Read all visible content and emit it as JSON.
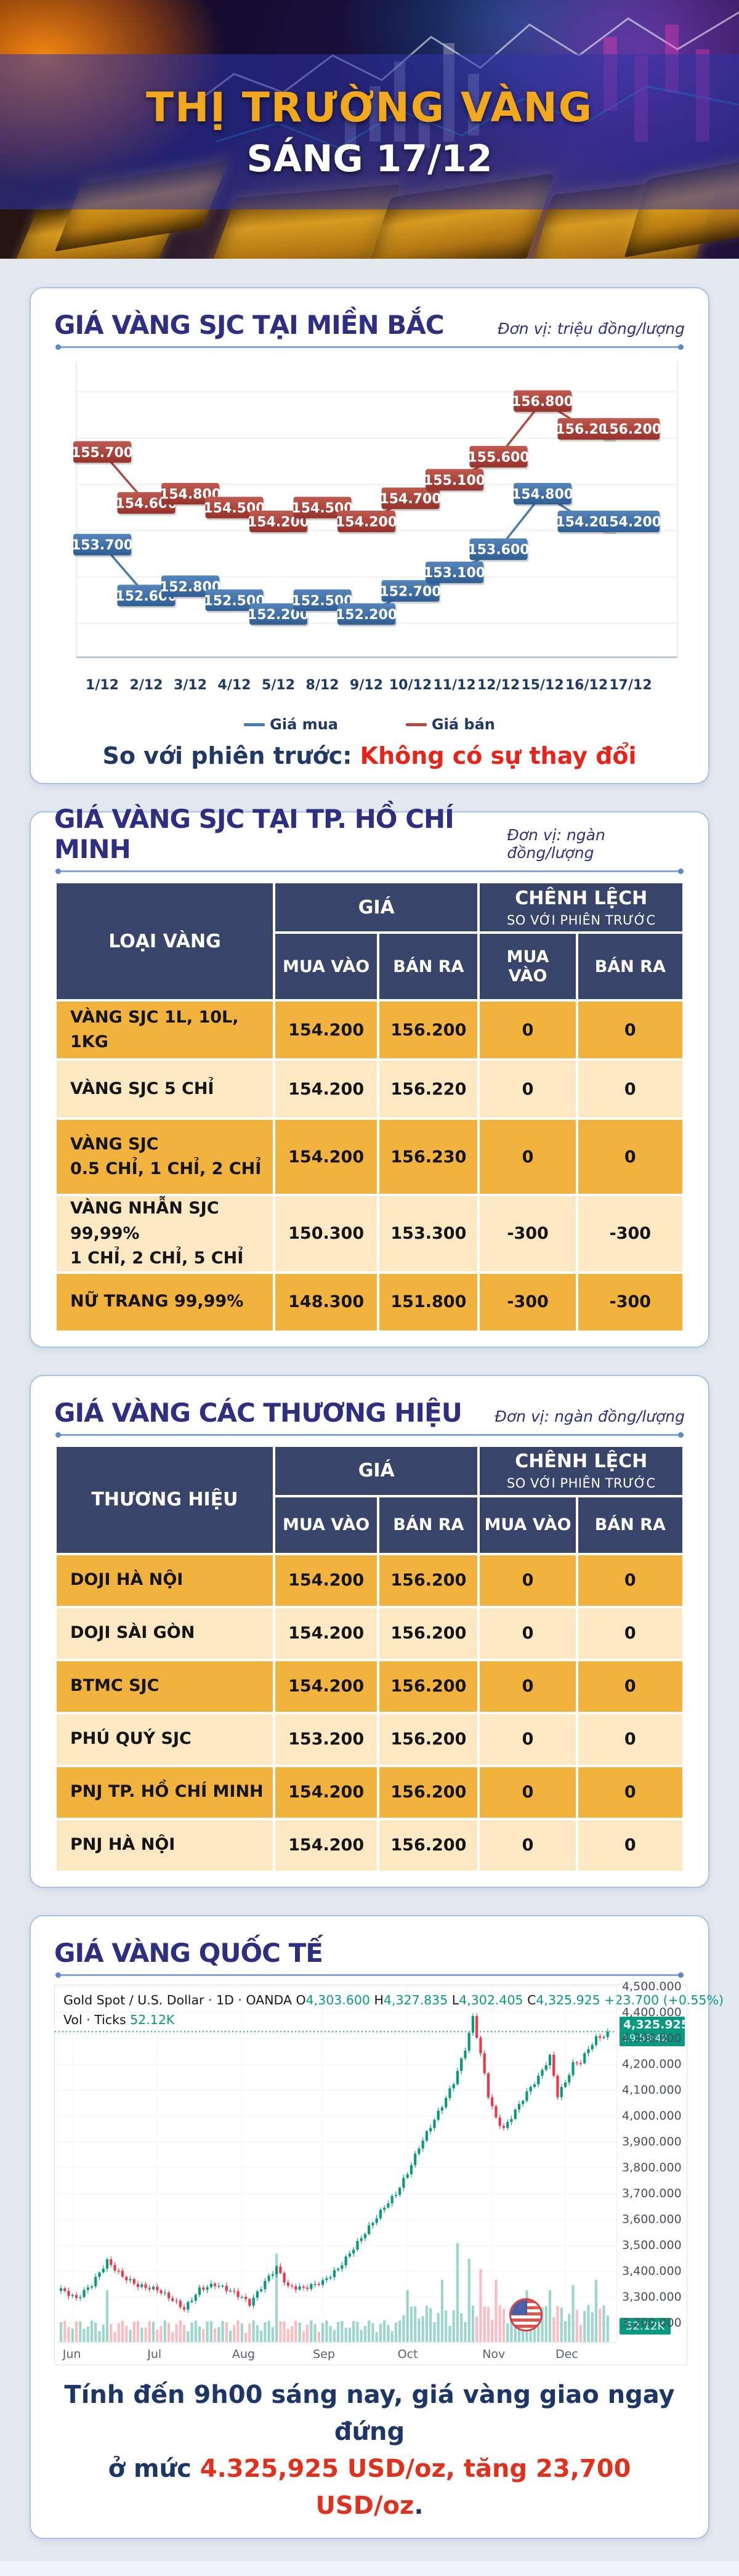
{
  "header": {
    "title": "THỊ TRƯỜNG VÀNG",
    "subtitle": "SÁNG 17/12"
  },
  "colors": {
    "navy": "#1f3864",
    "title_navy": "#2e2f80",
    "red_accent": "#e8231a",
    "buy_line": "#4a79ad",
    "sell_line": "#b04a42",
    "table_header": "#39446b",
    "row_dark": "#f2b23e",
    "row_light": "#fce9c4",
    "tv_up": "#089981",
    "tv_down": "#f23645"
  },
  "sjc_north": {
    "title": "GIÁ VÀNG SJC TẠI MIỀN BẮC",
    "unit": "Đơn vị: triệu đồng/lượng",
    "legend_buy": "Giá mua",
    "legend_sell": "Giá bán",
    "note_prefix": "So với phiên trước: ",
    "note_highlight": "Không có sự thay đổi"
  },
  "sjc_hcm": {
    "title": "GIÁ VÀNG SJC TẠI TP. HỒ CHÍ MINH",
    "unit": "Đơn vị: ngàn đồng/lượng",
    "table": {
      "col1_header": "LOẠI VÀNG",
      "gia_header": "GIÁ",
      "chenh_header": "CHÊNH LỆCH",
      "chenh_sub": "SO VỚI PHIÊN TRƯỚC",
      "sub_headers": [
        "MUA VÀO",
        "BÁN RA",
        "MUA\nVÀO",
        "BÁN RA"
      ],
      "rows": [
        {
          "label": "VÀNG SJC 1L, 10L, 1KG",
          "buy": "154.200",
          "sell": "156.200",
          "dbuy": "0",
          "dsell": "0",
          "tall": false
        },
        {
          "label": "VÀNG SJC 5 CHỈ",
          "buy": "154.200",
          "sell": "156.220",
          "dbuy": "0",
          "dsell": "0",
          "tall": false
        },
        {
          "label": "VÀNG SJC\n0.5 CHỈ, 1 CHỈ, 2 CHỈ",
          "buy": "154.200",
          "sell": "156.230",
          "dbuy": "0",
          "dsell": "0",
          "tall": true
        },
        {
          "label": "VÀNG NHẪN SJC 99,99%\n1 CHỈ, 2 CHỈ, 5 CHỈ",
          "buy": "150.300",
          "sell": "153.300",
          "dbuy": "-300",
          "dsell": "-300",
          "tall": true
        },
        {
          "label": "NỮ TRANG 99,99%",
          "buy": "148.300",
          "sell": "151.800",
          "dbuy": "-300",
          "dsell": "-300",
          "tall": false
        }
      ]
    }
  },
  "brands": {
    "title": "GIÁ VÀNG CÁC THƯƠNG HIỆU",
    "unit": "Đơn vị: ngàn đồng/lượng",
    "table": {
      "col1_header": "THƯƠNG HIỆU",
      "gia_header": "GIÁ",
      "chenh_header": "CHÊNH LỆCH",
      "chenh_sub": "SO VỚI PHIÊN TRƯỚC",
      "sub_headers": [
        "MUA VÀO",
        "BÁN RA",
        "MUA VÀO",
        "BÁN RA"
      ],
      "rows": [
        {
          "label": "DOJI HÀ NỘI",
          "buy": "154.200",
          "sell": "156.200",
          "dbuy": "0",
          "dsell": "0",
          "tall": false
        },
        {
          "label": "DOJI SÀI GÒN",
          "buy": "154.200",
          "sell": "156.200",
          "dbuy": "0",
          "dsell": "0",
          "tall": false
        },
        {
          "label": "BTMC SJC",
          "buy": "154.200",
          "sell": "156.200",
          "dbuy": "0",
          "dsell": "0",
          "tall": false
        },
        {
          "label": "PHÚ QUÝ SJC",
          "buy": "153.200",
          "sell": "156.200",
          "dbuy": "0",
          "dsell": "0",
          "tall": false
        },
        {
          "label": "PNJ TP. HỒ CHÍ MINH",
          "buy": "154.200",
          "sell": "156.200",
          "dbuy": "0",
          "dsell": "0",
          "tall": false
        },
        {
          "label": "PNJ HÀ NỘI",
          "buy": "154.200",
          "sell": "156.200",
          "dbuy": "0",
          "dsell": "0",
          "tall": false
        }
      ]
    }
  },
  "intl": {
    "title": "GIÁ VÀNG QUỐC TẾ",
    "legend": {
      "symbol": "Gold Spot / U.S. Dollar · 1D · OANDA",
      "ohlc": {
        "O": "4,303.600",
        "H": "4,327.835",
        "L": "4,302.405",
        "C": "4,325.925"
      },
      "change": "+23.700 (+0.55%)",
      "vol_label": "Vol · Ticks",
      "vol_value": "52.12K"
    },
    "price_badge": {
      "price": "4,325.925",
      "time": "19:58:42"
    },
    "vol_badge": "52.12K"
  },
  "footer": {
    "line1": "Tính đến 9h00 sáng nay, giá vàng giao ngay đứng",
    "line2_prefix": "ở mức ",
    "line2_red": "4.325,925 USD/oz, tăng 23,700 USD/oz",
    "line2_suffix": "."
  },
  "chart_data": [
    {
      "type": "line",
      "title": "GIÁ VÀNG SJC TẠI MIỀN BẮC",
      "ylabel": "triệu đồng/lượng",
      "categories": [
        "1/12",
        "2/12",
        "3/12",
        "4/12",
        "5/12",
        "8/12",
        "9/12",
        "10/12",
        "11/12",
        "12/12",
        "15/12",
        "16/12",
        "17/12"
      ],
      "series": [
        {
          "name": "Giá mua",
          "color": "#4a79ad",
          "values": [
            153.7,
            152.6,
            152.8,
            152.5,
            152.2,
            152.5,
            152.2,
            152.7,
            153.1,
            153.6,
            154.8,
            154.2,
            154.2
          ]
        },
        {
          "name": "Giá bán",
          "color": "#b04a42",
          "values": [
            155.7,
            154.6,
            154.8,
            154.5,
            154.2,
            154.5,
            154.2,
            154.7,
            155.1,
            155.6,
            156.8,
            156.2,
            156.2
          ]
        }
      ],
      "ylim": [
        151.4,
        157.6
      ],
      "grid": true,
      "legend_position": "bottom"
    },
    {
      "type": "candlestick",
      "title": "Gold Spot / U.S. Dollar, 1D, OANDA",
      "last_close": 4325.925,
      "open": 4303.6,
      "high": 4327.835,
      "low": 4302.405,
      "close": 4325.925,
      "change": "+23.700 (+0.55%)",
      "volume_ticks": "52.12K",
      "ylim": [
        3125,
        4505
      ],
      "y_ticks": [
        4500,
        4400,
        4300,
        4200,
        4100,
        4000,
        3900,
        3800,
        3700,
        3600,
        3500,
        3400,
        3300,
        3200
      ],
      "n_candles": 143,
      "close_anchors": [
        [
          0,
          3330
        ],
        [
          4,
          3295
        ],
        [
          8,
          3350
        ],
        [
          12,
          3440
        ],
        [
          16,
          3380
        ],
        [
          20,
          3345
        ],
        [
          25,
          3330
        ],
        [
          29,
          3290
        ],
        [
          32,
          3255
        ],
        [
          36,
          3330
        ],
        [
          40,
          3350
        ],
        [
          44,
          3325
        ],
        [
          47,
          3300
        ],
        [
          49,
          3275
        ],
        [
          53,
          3360
        ],
        [
          56,
          3415
        ],
        [
          59,
          3340
        ],
        [
          63,
          3335
        ],
        [
          66,
          3350
        ],
        [
          68,
          3360
        ],
        [
          72,
          3410
        ],
        [
          76,
          3490
        ],
        [
          80,
          3570
        ],
        [
          84,
          3650
        ],
        [
          87,
          3700
        ],
        [
          90,
          3780
        ],
        [
          93,
          3880
        ],
        [
          96,
          3960
        ],
        [
          99,
          4040
        ],
        [
          102,
          4130
        ],
        [
          105,
          4260
        ],
        [
          107,
          4380
        ],
        [
          109,
          4240
        ],
        [
          111,
          4080
        ],
        [
          113,
          3990
        ],
        [
          115,
          3950
        ],
        [
          118,
          4020
        ],
        [
          121,
          4090
        ],
        [
          124,
          4150
        ],
        [
          127,
          4230
        ],
        [
          129,
          4080
        ],
        [
          131,
          4130
        ],
        [
          133,
          4200
        ],
        [
          135,
          4210
        ],
        [
          137,
          4260
        ],
        [
          139,
          4300
        ],
        [
          141,
          4310
        ],
        [
          142,
          4325.925
        ]
      ],
      "wiggle": 8,
      "months": [
        {
          "label": "Jun",
          "i": 3
        },
        {
          "label": "Jul",
          "i": 25
        },
        {
          "label": "Aug",
          "i": 47
        },
        {
          "label": "Sep",
          "i": 68
        },
        {
          "label": "Oct",
          "i": 90
        },
        {
          "label": "Nov",
          "i": 112
        },
        {
          "label": "Dec",
          "i": 131
        }
      ],
      "vol_spikes": {
        "12": 0.5,
        "56": 0.85,
        "90": 0.5,
        "99": 0.6,
        "103": 0.95,
        "106": 0.8,
        "109": 0.7,
        "113": 0.6,
        "121": 0.5,
        "127": 0.5,
        "133": 0.55,
        "139": 0.6
      }
    }
  ]
}
